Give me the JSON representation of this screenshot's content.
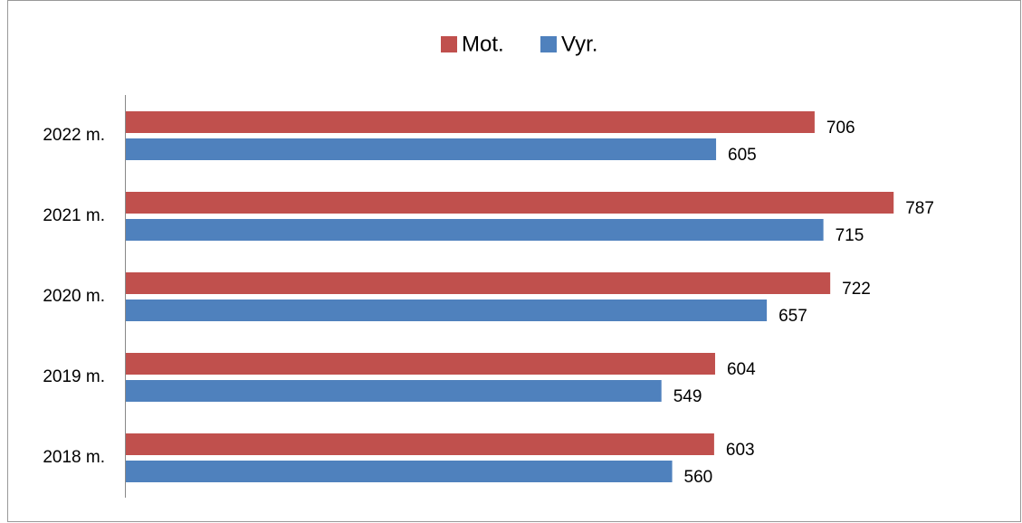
{
  "chart_data": {
    "type": "hbar",
    "categories": [
      "2022 m.",
      "2021 m.",
      "2020 m.",
      "2019 m.",
      "2018 m."
    ],
    "series": [
      {
        "name": "Mot.",
        "color": "#c0504d",
        "values": [
          706,
          787,
          722,
          604,
          603
        ]
      },
      {
        "name": "Vyr.",
        "color": "#4f81bd",
        "values": [
          605,
          715,
          657,
          549,
          560
        ]
      }
    ],
    "xlim": [
      0,
      900
    ]
  }
}
